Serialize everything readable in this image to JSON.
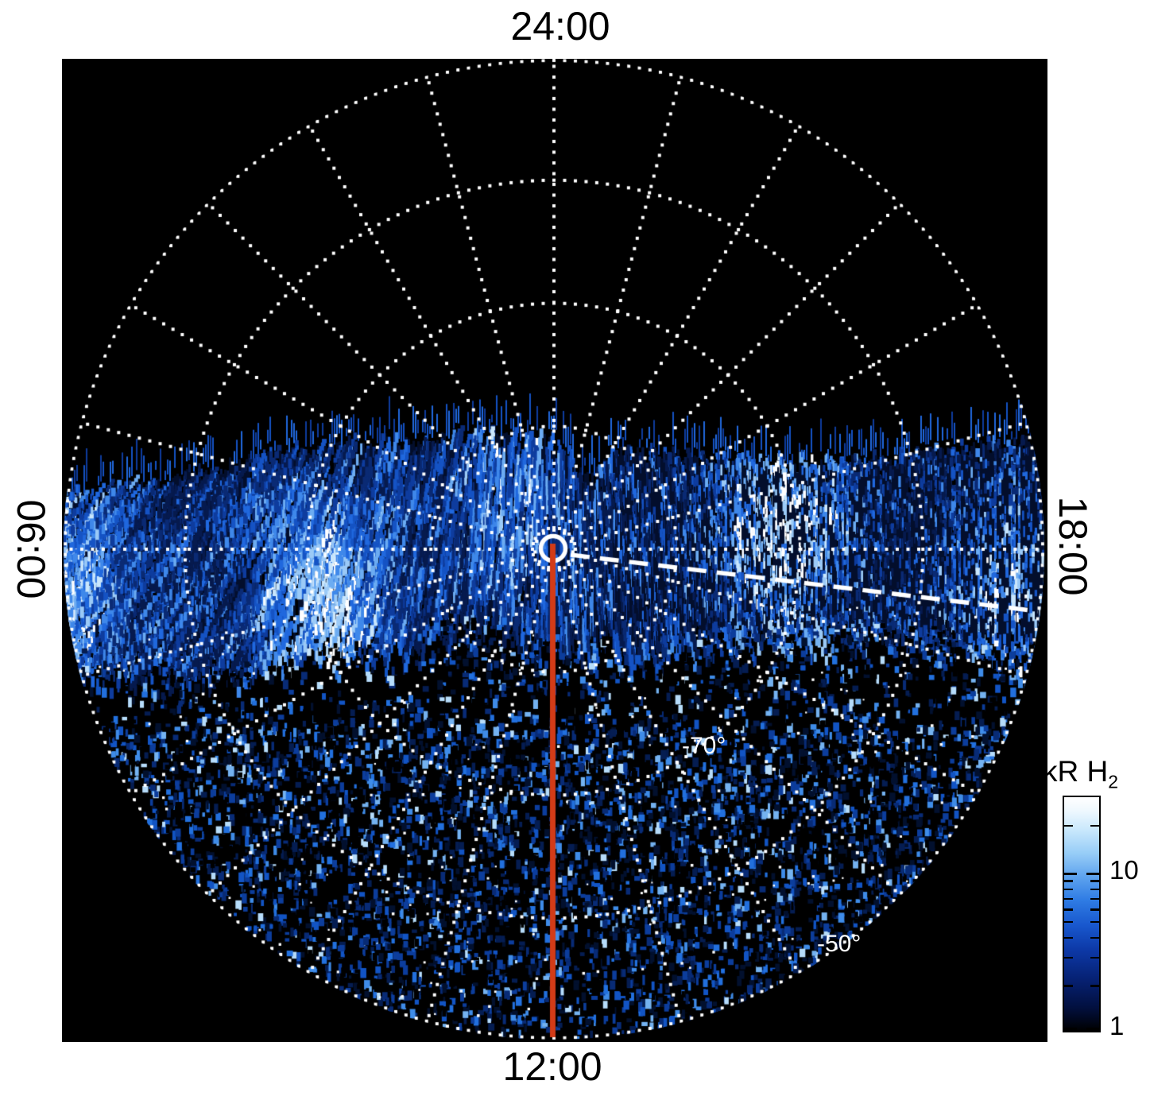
{
  "figure": {
    "background": "#ffffff",
    "plot_background": "#000000"
  },
  "chart_data": {
    "type": "heatmap",
    "projection": "polar",
    "description": "South polar projection of H2 auroral emission brightness: bright blue-white band of vertical streaks spanning dawn-dusk across the pole, blue speckle noise over the lower (dayside) hemisphere, black sky above.",
    "angular_axis": {
      "unit": "local time",
      "labels": {
        "top": "24:00",
        "left": "06:00",
        "bottom": "12:00",
        "right": "18:00"
      },
      "spoke_interval_hours": 1,
      "spoke_interval_deg": 15
    },
    "radial_axis": {
      "unit": "latitude",
      "pole": -90,
      "edge": -50,
      "rings": [
        -80,
        -70,
        -60,
        -50
      ],
      "ring_labels": {
        "m70": "-70°",
        "m50": "-50°"
      }
    },
    "color_axis": {
      "title_main": "kR H",
      "title_sub": "2",
      "scale": "log",
      "min": 1,
      "max": 30,
      "major_ticks": [
        {
          "value": 10,
          "label": "10"
        },
        {
          "value": 1,
          "label": "1"
        }
      ],
      "minor_ticks": [
        20,
        9,
        8,
        7,
        6,
        5,
        4,
        3,
        2
      ],
      "gradient": [
        [
          "0%",
          "#ffffff"
        ],
        [
          "6%",
          "#eef8fe"
        ],
        [
          "14%",
          "#c9e8fc"
        ],
        [
          "24%",
          "#97cdf7"
        ],
        [
          "34%",
          "#5ea3ee"
        ],
        [
          "44%",
          "#2f7ce4"
        ],
        [
          "55%",
          "#1857cd"
        ],
        [
          "66%",
          "#0c37a4"
        ],
        [
          "78%",
          "#062173"
        ],
        [
          "90%",
          "#02103f"
        ],
        [
          "100%",
          "#000000"
        ]
      ]
    },
    "overlays": {
      "pole_marker": {
        "shape": "open-circle",
        "color": "#ffffff"
      },
      "inner_dotted_circle": {
        "color": "#ffffff"
      },
      "noon_meridian_line": {
        "from": "pole",
        "to": "12:00 rim",
        "color": "#d23b17",
        "style": "solid"
      },
      "dashed_line": {
        "from": "pole",
        "to": "dusk rim (slightly below 18:00)",
        "color": "#ffffff",
        "style": "dashed"
      },
      "grid_color": "#ffffff"
    },
    "features": {
      "band_top_frac": 0.382,
      "band_bottom_frac": 0.566,
      "bright_patches": [
        {
          "x": 0.012,
          "y": 0.52,
          "s": 0.75
        },
        {
          "x": 0.266,
          "y": 0.53,
          "s": 0.9
        },
        {
          "x": 0.456,
          "y": 0.4,
          "s": 0.55
        },
        {
          "x": 0.73,
          "y": 0.47,
          "s": 1.0
        },
        {
          "x": 0.955,
          "y": 0.53,
          "s": 0.7
        }
      ],
      "lower_half": "blue speckle noise with sparse white specks"
    }
  }
}
